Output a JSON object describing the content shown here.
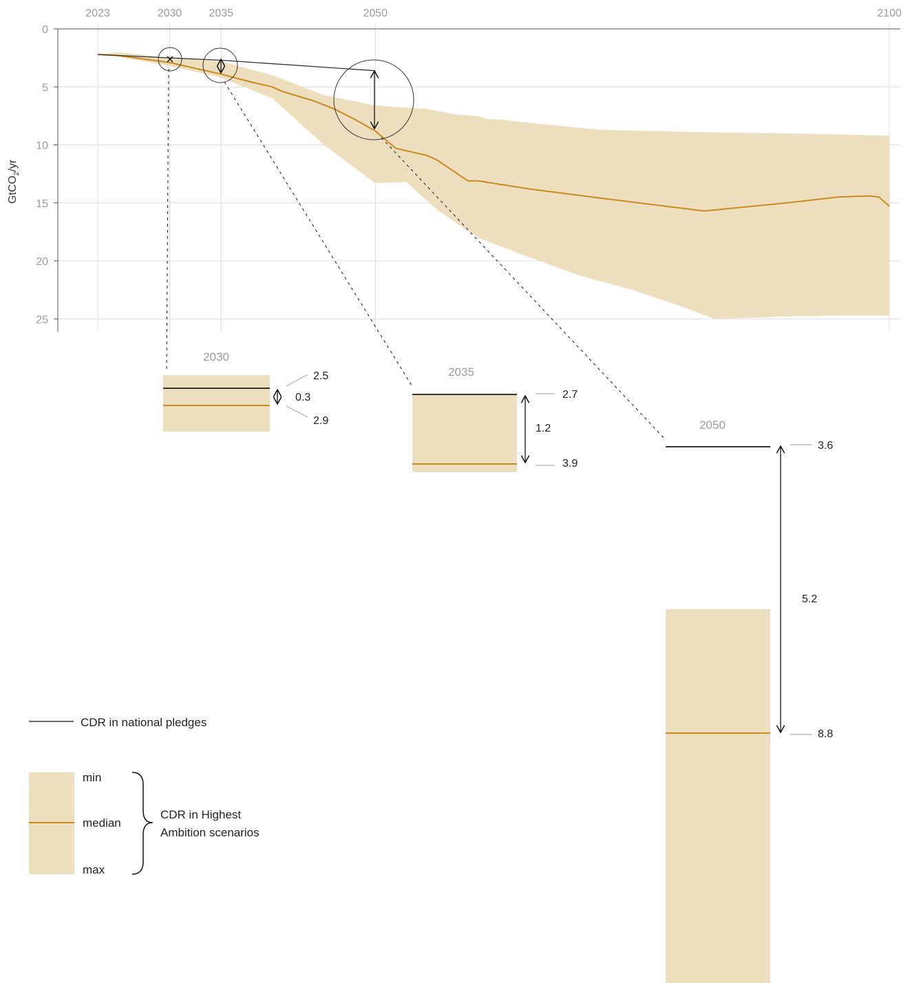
{
  "colors": {
    "band": "#eddfbd",
    "median": "#c8891f",
    "pledge": "#333333",
    "grid": "#dcdcdc",
    "tick": "#9a9a9a"
  },
  "chart_data": {
    "type": "area",
    "ylabel_base": "GtCO",
    "ylabel_sub": "2",
    "ylabel_unit": "/yr",
    "x_ticks": [
      "2023",
      "2030",
      "2035",
      "2050",
      "2100"
    ],
    "y_ticks": [
      "0",
      "5",
      "10",
      "15",
      "20",
      "25"
    ],
    "ylim": [
      0,
      25
    ],
    "xlim": [
      2019,
      2100
    ],
    "y_axis_inverted": true,
    "grid": true,
    "pledges": {
      "x": [
        2023,
        2030,
        2035,
        2050
      ],
      "y": [
        2.2,
        2.5,
        2.7,
        3.6
      ]
    },
    "median": {
      "x": [
        2023,
        2025,
        2030,
        2035,
        2038,
        2040,
        2041,
        2044,
        2046,
        2048,
        2050,
        2052,
        2055,
        2056,
        2058,
        2059,
        2060,
        2065,
        2072,
        2082,
        2090,
        2095,
        2098,
        2099,
        2100
      ],
      "y": [
        2.2,
        2.3,
        2.9,
        3.9,
        4.6,
        5.0,
        5.4,
        6.2,
        6.9,
        7.8,
        8.8,
        10.3,
        10.9,
        11.3,
        12.5,
        13.1,
        13.1,
        13.8,
        14.6,
        15.7,
        15.0,
        14.5,
        14.4,
        14.5,
        15.3
      ]
    },
    "band_min": {
      "x": [
        2023,
        2025,
        2030,
        2035,
        2040,
        2045,
        2050,
        2055,
        2058,
        2060,
        2061,
        2062,
        2065,
        2072,
        2082,
        2090,
        2095,
        2100
      ],
      "y": [
        2.2,
        2.0,
        2.5,
        2.8,
        4.0,
        5.7,
        6.6,
        6.9,
        7.4,
        7.5,
        7.8,
        7.8,
        8.1,
        8.7,
        8.9,
        9.0,
        9.1,
        9.2
      ]
    },
    "band_max": {
      "x": [
        2023,
        2025,
        2030,
        2035,
        2040,
        2045,
        2050,
        2053,
        2056,
        2060,
        2065,
        2070,
        2075,
        2080,
        2083,
        2090,
        2095,
        2100
      ],
      "y": [
        2.2,
        2.4,
        3.2,
        4.2,
        6.0,
        10.0,
        13.3,
        13.2,
        15.6,
        18.0,
        19.7,
        21.3,
        22.5,
        24.0,
        25.0,
        24.8,
        24.7,
        24.7
      ]
    },
    "insets": [
      {
        "year": "2030",
        "pledge_label": "2.5",
        "median_label": "2.9",
        "diff_label": "0.3"
      },
      {
        "year": "2035",
        "pledge_label": "2.7",
        "median_label": "3.9",
        "diff_label": "1.2"
      },
      {
        "year": "2050",
        "pledge_label": "3.6",
        "median_label": "8.8",
        "diff_label": "5.2"
      }
    ]
  },
  "legend": {
    "pledge_label": "CDR in national pledges",
    "band_min": "min",
    "band_median": "median",
    "band_max": "max",
    "scenario_label_line1": "CDR in Highest",
    "scenario_label_line2": "Ambition scenarios"
  }
}
